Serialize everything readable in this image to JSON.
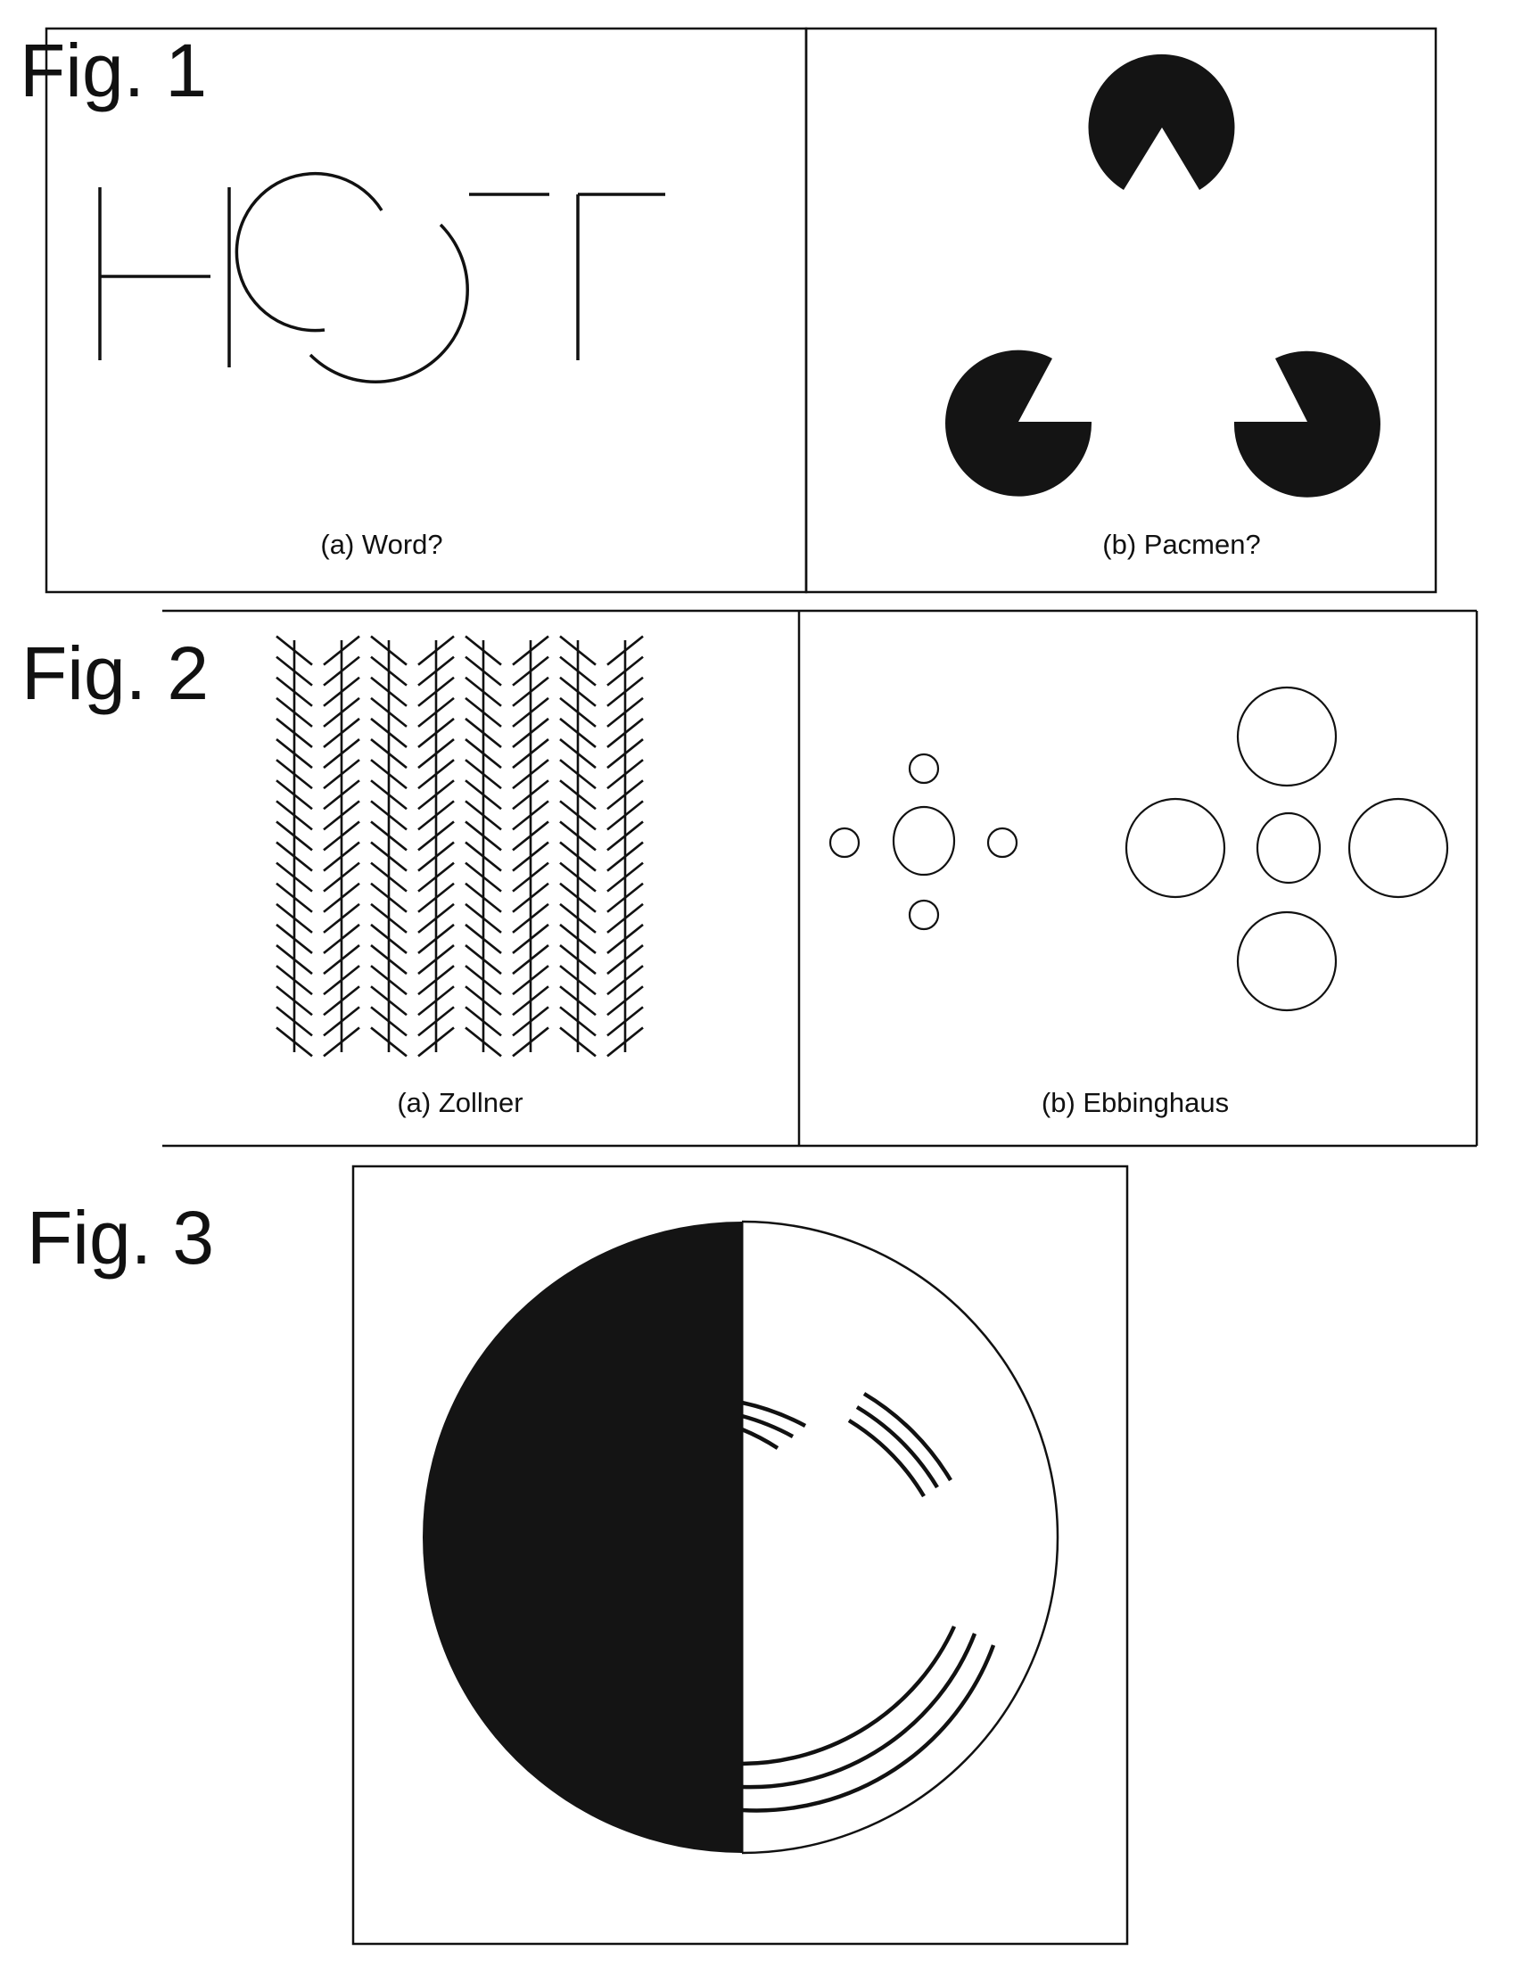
{
  "figures": [
    {
      "label": "Fig. 1",
      "panels": [
        {
          "caption": "(a) Word?",
          "drawing": "fragmented-letters"
        },
        {
          "caption": "(b) Pacmen?",
          "drawing": "kanizsa-triangle"
        }
      ]
    },
    {
      "label": "Fig. 2",
      "panels": [
        {
          "caption": "(a) Zollner",
          "drawing": "zollner-illusion",
          "vertical_lines": 8,
          "hatch_rows": 20
        },
        {
          "caption": "(b) Ebbinghaus",
          "drawing": "ebbinghaus-illusion"
        }
      ]
    },
    {
      "label": "Fig. 3",
      "panels": [
        {
          "caption": "",
          "drawing": "half-black-disc-with-arcs"
        }
      ]
    }
  ],
  "colors": {
    "ink": "#111111",
    "fill": "#141414",
    "background": "#ffffff"
  }
}
